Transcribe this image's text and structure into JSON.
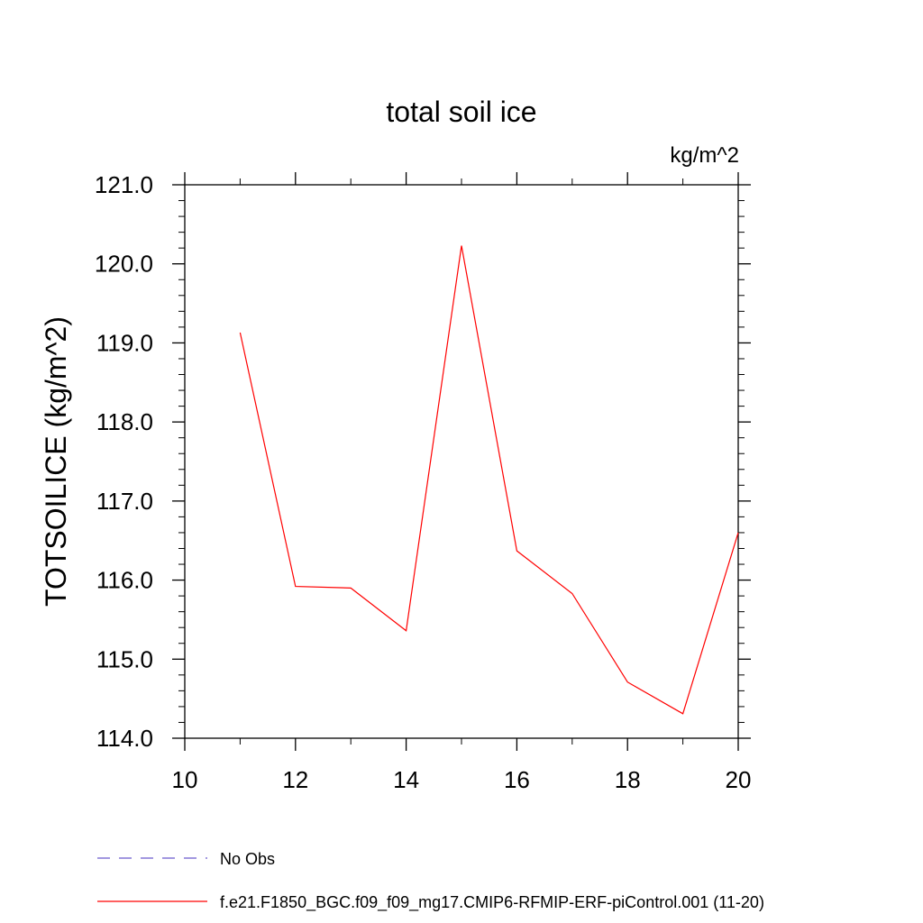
{
  "chart_data": {
    "type": "line",
    "title": "total soil ice",
    "units": "kg/m^2",
    "xlabel": "",
    "ylabel": "TOTSOILICE  (kg/m^2)",
    "xlim": [
      10,
      20
    ],
    "ylim": [
      114.0,
      121.0
    ],
    "x_ticks": [
      "10",
      "12",
      "14",
      "16",
      "18",
      "20"
    ],
    "y_ticks": [
      "114.0",
      "115.0",
      "116.0",
      "117.0",
      "118.0",
      "119.0",
      "120.0",
      "121.0"
    ],
    "grid": false,
    "legend_position": "bottom",
    "series": [
      {
        "name": "f.e21.F1850_BGC.f09_f09_mg17.CMIP6-RFMIP-ERF-piControl.001 (11-20)",
        "color": "#ff0000",
        "style": "solid",
        "x": [
          11,
          12,
          13,
          14,
          15,
          16,
          17,
          18,
          19,
          20
        ],
        "y": [
          119.13,
          115.92,
          115.9,
          115.36,
          120.23,
          116.37,
          115.83,
          114.71,
          114.31,
          116.6
        ]
      },
      {
        "name": "No Obs",
        "color": "#6a5acd",
        "style": "dashed",
        "x": [],
        "y": []
      }
    ]
  }
}
